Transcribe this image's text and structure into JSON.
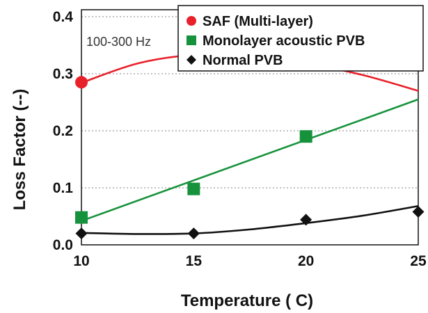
{
  "chart_data": {
    "type": "line",
    "title": "",
    "xlabel": "Temperature ( C)",
    "ylabel": "Loss Factor (--)",
    "annotation": "100-300 Hz",
    "x": [
      10,
      15,
      20,
      25
    ],
    "xlim": [
      10,
      25
    ],
    "ylim": [
      0,
      0.4
    ],
    "xticks": [
      "10",
      "15",
      "20",
      "25"
    ],
    "yticks": [
      "0.0",
      "0.1",
      "0.2",
      "0.3",
      "0.4"
    ],
    "grid": "horizontal dotted",
    "legend_position": "top-right",
    "series": [
      {
        "name": "SAF (Multi-layer)",
        "color": "#e8202a",
        "marker": "circle",
        "points": [
          {
            "x": 10,
            "y": 0.285
          },
          {
            "x": 15,
            "y": 0.333
          },
          {
            "x": 20,
            "y": 0.321
          }
        ],
        "curve": [
          {
            "x": 10,
            "y": 0.284
          },
          {
            "x": 12.5,
            "y": 0.318
          },
          {
            "x": 15,
            "y": 0.333
          },
          {
            "x": 17.5,
            "y": 0.332
          },
          {
            "x": 20,
            "y": 0.318
          },
          {
            "x": 22.5,
            "y": 0.298
          },
          {
            "x": 25,
            "y": 0.27
          }
        ]
      },
      {
        "name": "Monolayer acoustic PVB",
        "color": "#17923c",
        "marker": "square",
        "points": [
          {
            "x": 10,
            "y": 0.048
          },
          {
            "x": 15,
            "y": 0.098
          },
          {
            "x": 20,
            "y": 0.19
          }
        ],
        "curve": [
          {
            "x": 10,
            "y": 0.042
          },
          {
            "x": 25,
            "y": 0.255
          }
        ]
      },
      {
        "name": "Normal PVB",
        "color": "#111111",
        "marker": "diamond",
        "points": [
          {
            "x": 10,
            "y": 0.02
          },
          {
            "x": 15,
            "y": 0.02
          },
          {
            "x": 20,
            "y": 0.044
          },
          {
            "x": 25,
            "y": 0.058
          }
        ],
        "curve": [
          {
            "x": 10,
            "y": 0.021
          },
          {
            "x": 12.5,
            "y": 0.019
          },
          {
            "x": 15,
            "y": 0.02
          },
          {
            "x": 17.5,
            "y": 0.027
          },
          {
            "x": 20,
            "y": 0.038
          },
          {
            "x": 22.5,
            "y": 0.051
          },
          {
            "x": 25,
            "y": 0.068
          }
        ]
      }
    ]
  }
}
